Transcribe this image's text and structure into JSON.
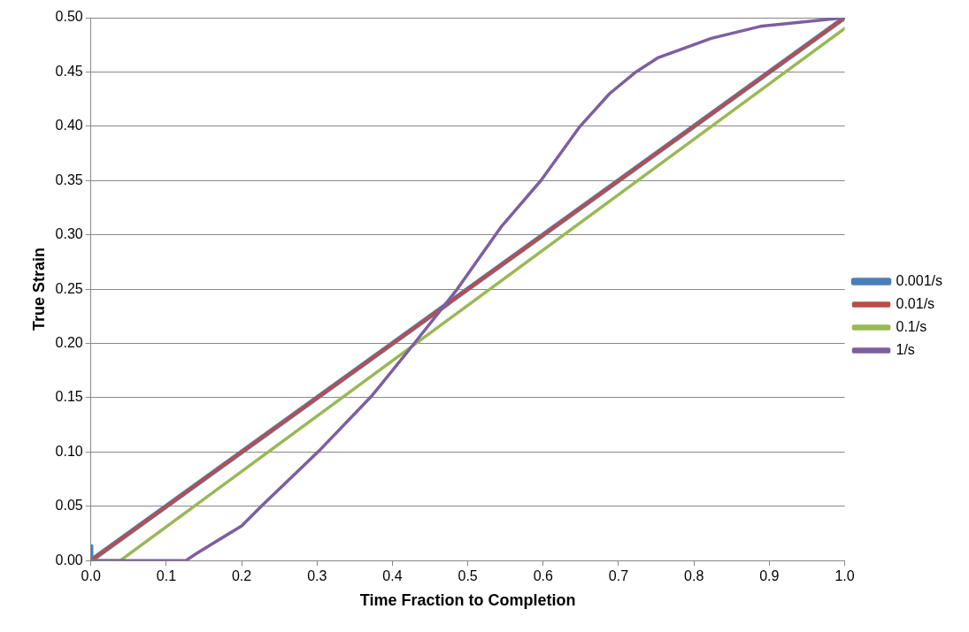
{
  "chart_data": {
    "type": "line",
    "xlabel": "Time Fraction to Completion",
    "ylabel": "True Strain",
    "xlim": [
      0,
      1
    ],
    "xticks": [
      {
        "value": 0,
        "label": "0.0"
      },
      {
        "value": 0.1,
        "label": "0.1"
      },
      {
        "value": 0.2,
        "label": "0.2"
      },
      {
        "value": 0.3,
        "label": "0.3"
      },
      {
        "value": 0.4,
        "label": "0.4"
      },
      {
        "value": 0.5,
        "label": "0.5"
      },
      {
        "value": 0.6,
        "label": "0.6"
      },
      {
        "value": 0.7,
        "label": "0.7"
      },
      {
        "value": 0.8,
        "label": "0.8"
      },
      {
        "value": 0.9,
        "label": "0.9"
      },
      {
        "value": 1,
        "label": "1.0"
      }
    ],
    "ylim": [
      0,
      0.5
    ],
    "yticks": [
      {
        "value": 0,
        "label": "0.00"
      },
      {
        "value": 0.05,
        "label": "0.05"
      },
      {
        "value": 0.1,
        "label": "0.10"
      },
      {
        "value": 0.15,
        "label": "0.15"
      },
      {
        "value": 0.2,
        "label": "0.20"
      },
      {
        "value": 0.25,
        "label": "0.25"
      },
      {
        "value": 0.3,
        "label": "0.30"
      },
      {
        "value": 0.35,
        "label": "0.35"
      },
      {
        "value": 0.4,
        "label": "0.40"
      },
      {
        "value": 0.45,
        "label": "0.45"
      },
      {
        "value": 0.5,
        "label": "0.50"
      }
    ],
    "grid": "y",
    "legend": "right",
    "marker": "none",
    "line_style": "solid",
    "series": [
      {
        "name": "0.001/s",
        "color": "#4a7ebb",
        "x": [
          0,
          0,
          1
        ],
        "values": [
          0.013,
          0,
          0.5
        ]
      },
      {
        "name": "0.01/s",
        "color": "#be4b48",
        "x": [
          0,
          1
        ],
        "values": [
          0,
          0.5
        ]
      },
      {
        "name": "0.1/s",
        "color": "#98b954",
        "x": [
          0,
          0.039,
          1
        ],
        "values": [
          0,
          0,
          0.49
        ]
      },
      {
        "name": "1/s",
        "color": "#7d5fa0",
        "x": [
          0,
          0.113,
          0.126,
          0.139,
          0.2,
          0.226,
          0.304,
          0.373,
          0.386,
          0.429,
          0.486,
          0.545,
          0.597,
          0.649,
          0.688,
          0.723,
          0.752,
          0.823,
          0.888,
          1
        ],
        "values": [
          0,
          0,
          0,
          0.006,
          0.032,
          0.05,
          0.102,
          0.152,
          0.163,
          0.2,
          0.25,
          0.308,
          0.35,
          0.4,
          0.43,
          0.45,
          0.463,
          0.481,
          0.492,
          0.5
        ]
      }
    ]
  }
}
